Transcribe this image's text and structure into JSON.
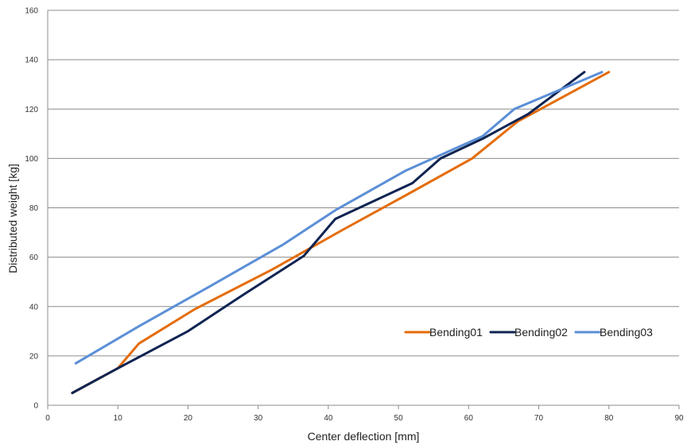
{
  "chart_data": {
    "type": "line",
    "title": "",
    "xlabel": "Center deflection [mm]",
    "ylabel": "Distributed weight [kg]",
    "xlim": [
      0,
      90
    ],
    "ylim": [
      0,
      160
    ],
    "xticks": [
      0,
      10,
      20,
      30,
      40,
      50,
      60,
      70,
      80,
      90
    ],
    "yticks": [
      0,
      20,
      40,
      60,
      80,
      100,
      120,
      140,
      160
    ],
    "grid": "horizontal",
    "legend_position": "inside-lower-right",
    "series": [
      {
        "name": "Bending01",
        "color": "#e46c0a",
        "points": [
          [
            3.5,
            5
          ],
          [
            10,
            15
          ],
          [
            13,
            25
          ],
          [
            21,
            39
          ],
          [
            32,
            55
          ],
          [
            42,
            71
          ],
          [
            51,
            85
          ],
          [
            60.5,
            100
          ],
          [
            67,
            115
          ],
          [
            80,
            135
          ]
        ]
      },
      {
        "name": "Bending02",
        "color": "#0f2452",
        "points": [
          [
            3.5,
            5
          ],
          [
            10,
            15
          ],
          [
            20,
            30
          ],
          [
            28,
            45
          ],
          [
            36.5,
            60.5
          ],
          [
            41,
            75.5
          ],
          [
            52,
            90
          ],
          [
            56,
            100
          ],
          [
            62,
            108
          ],
          [
            68.5,
            118
          ],
          [
            76.5,
            135
          ]
        ]
      },
      {
        "name": "Bending03",
        "color": "#5b8fd6",
        "points": [
          [
            4,
            17
          ],
          [
            13,
            32
          ],
          [
            23,
            48
          ],
          [
            33.5,
            65
          ],
          [
            41,
            79
          ],
          [
            51,
            95
          ],
          [
            62,
            109
          ],
          [
            66.5,
            120
          ],
          [
            79,
            135
          ]
        ]
      }
    ]
  }
}
